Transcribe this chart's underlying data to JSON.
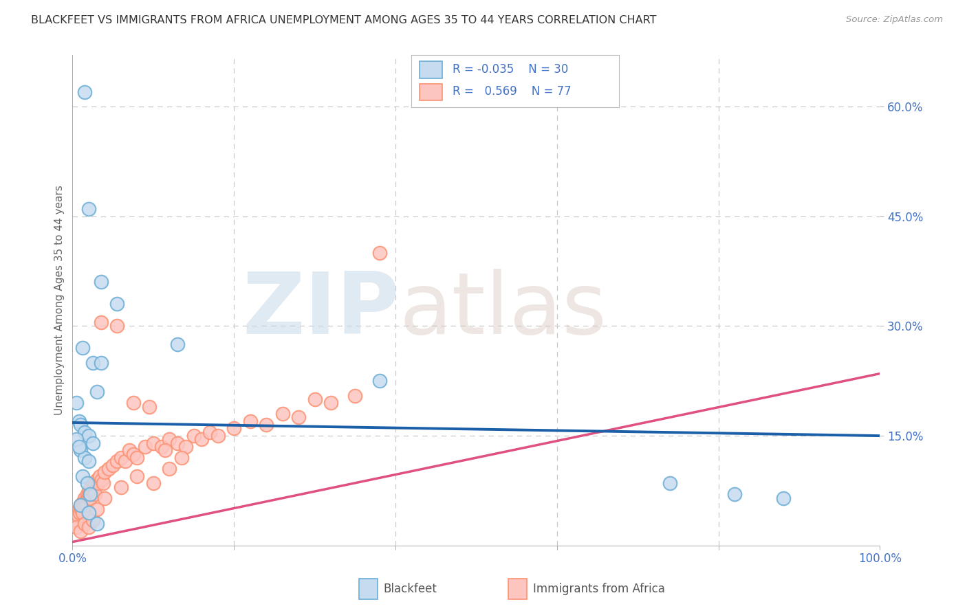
{
  "title": "BLACKFEET VS IMMIGRANTS FROM AFRICA UNEMPLOYMENT AMONG AGES 35 TO 44 YEARS CORRELATION CHART",
  "source": "Source: ZipAtlas.com",
  "ylabel": "Unemployment Among Ages 35 to 44 years",
  "xlim": [
    0,
    100
  ],
  "ylim": [
    0,
    67
  ],
  "ytick_vals": [
    15,
    30,
    45,
    60
  ],
  "ytick_labels": [
    "15.0%",
    "30.0%",
    "45.0%",
    "60.0%"
  ],
  "background_color": "#ffffff",
  "grid_color": "#c8c8c8",
  "blue_face": "#c6dbef",
  "blue_edge": "#6baed6",
  "blue_line": "#1a5fa8",
  "pink_face": "#fcc5c0",
  "pink_edge": "#fc9272",
  "pink_line": "#e05080",
  "pink_dash": "#e0a0b8",
  "tick_color": "#4472c4",
  "label1": "Blackfeet",
  "label2": "Immigrants from Africa",
  "blue_slope": -0.018,
  "blue_intercept": 16.8,
  "pink_slope": 0.23,
  "pink_intercept": 0.5,
  "bf_x": [
    1.5,
    2.0,
    3.5,
    5.5,
    1.2,
    2.5,
    3.0,
    0.5,
    0.8,
    1.0,
    1.5,
    2.0,
    2.5,
    1.0,
    1.5,
    2.0,
    0.5,
    0.8,
    1.2,
    1.8,
    2.2,
    3.0,
    38.0,
    13.0,
    74.0,
    82.0,
    88.0,
    1.0,
    2.0,
    3.5
  ],
  "bf_y": [
    62.0,
    46.0,
    36.0,
    33.0,
    27.0,
    25.0,
    21.0,
    19.5,
    17.0,
    16.5,
    15.5,
    15.0,
    14.0,
    13.0,
    12.0,
    11.5,
    14.5,
    13.5,
    9.5,
    8.5,
    7.0,
    3.0,
    22.5,
    27.5,
    8.5,
    7.0,
    6.5,
    5.5,
    4.5,
    25.0
  ],
  "af_x": [
    0.2,
    0.3,
    0.4,
    0.5,
    0.6,
    0.7,
    0.8,
    0.9,
    1.0,
    1.1,
    1.2,
    1.3,
    1.4,
    1.5,
    1.6,
    1.7,
    1.8,
    1.9,
    2.0,
    2.1,
    2.2,
    2.3,
    2.4,
    2.5,
    2.6,
    2.7,
    2.8,
    3.0,
    3.2,
    3.4,
    3.6,
    3.8,
    4.0,
    4.5,
    5.0,
    5.5,
    6.0,
    6.5,
    7.0,
    7.5,
    8.0,
    9.0,
    10.0,
    11.0,
    12.0,
    13.0,
    14.0,
    15.0,
    16.0,
    17.0,
    18.0,
    20.0,
    22.0,
    24.0,
    26.0,
    28.0,
    30.0,
    32.0,
    35.0,
    38.0,
    3.5,
    5.5,
    7.5,
    9.5,
    11.5,
    13.5,
    0.5,
    1.0,
    1.5,
    2.0,
    2.5,
    3.0,
    4.0,
    6.0,
    8.0,
    10.0,
    12.0
  ],
  "af_y": [
    3.5,
    4.0,
    3.0,
    3.5,
    4.5,
    4.0,
    5.0,
    4.5,
    5.5,
    5.0,
    4.5,
    6.0,
    5.5,
    6.5,
    6.0,
    5.5,
    7.0,
    6.5,
    7.5,
    7.0,
    6.5,
    8.0,
    7.5,
    8.5,
    8.0,
    7.5,
    7.0,
    9.0,
    8.5,
    9.5,
    9.0,
    8.5,
    10.0,
    10.5,
    11.0,
    11.5,
    12.0,
    11.5,
    13.0,
    12.5,
    12.0,
    13.5,
    14.0,
    13.5,
    14.5,
    14.0,
    13.5,
    15.0,
    14.5,
    15.5,
    15.0,
    16.0,
    17.0,
    16.5,
    18.0,
    17.5,
    20.0,
    19.5,
    20.5,
    40.0,
    30.5,
    30.0,
    19.5,
    19.0,
    13.0,
    12.0,
    2.5,
    2.0,
    3.0,
    2.5,
    3.5,
    5.0,
    6.5,
    8.0,
    9.5,
    8.5,
    10.5
  ]
}
